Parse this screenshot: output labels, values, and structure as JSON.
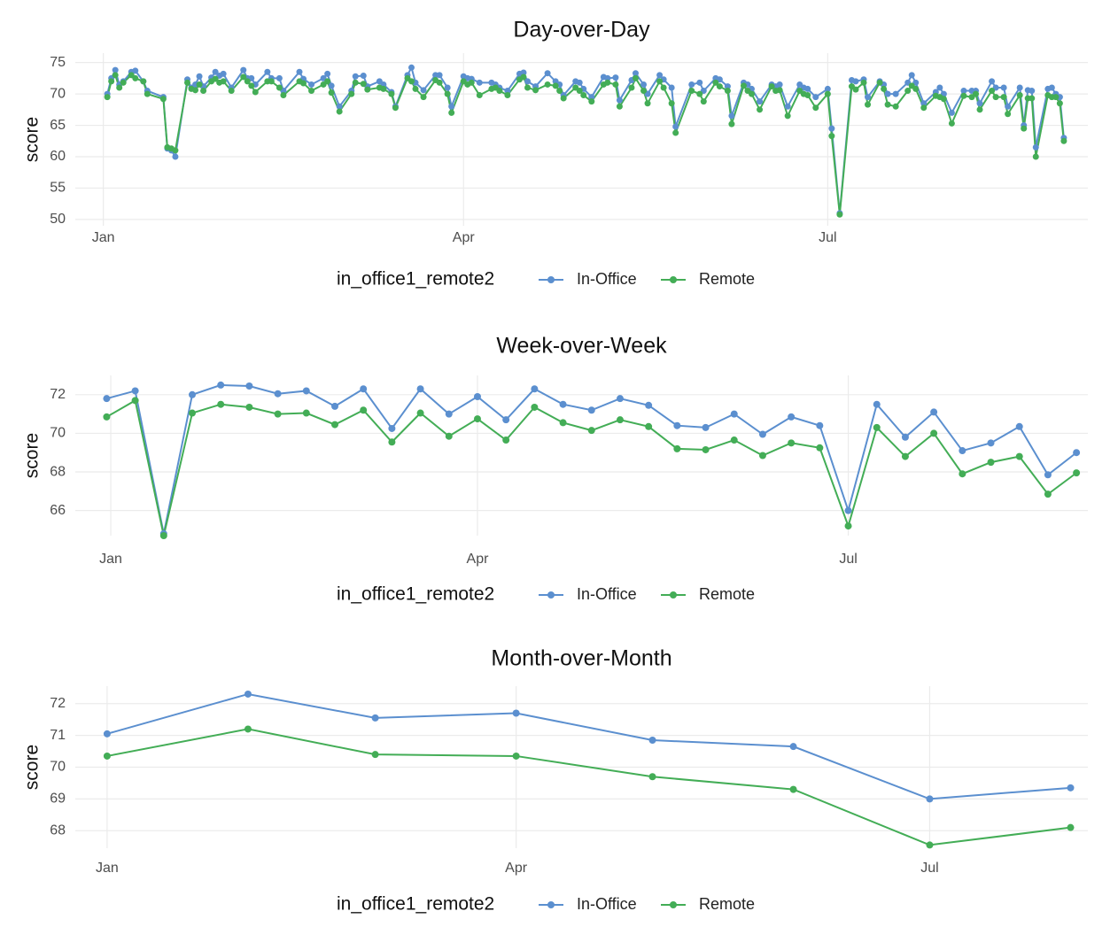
{
  "chart_data": [
    {
      "type": "line",
      "title": "Day-over-Day",
      "y_label": "score",
      "legend_title": "in_office1_remote2",
      "x": [
        1,
        2,
        3,
        4,
        5,
        7,
        8,
        10,
        11,
        15,
        16,
        17,
        18,
        21,
        22,
        23,
        24,
        25,
        27,
        28,
        29,
        30,
        32,
        35,
        36,
        37,
        38,
        41,
        42,
        44,
        45,
        49,
        50,
        52,
        55,
        56,
        57,
        59,
        62,
        63,
        65,
        66,
        69,
        70,
        72,
        73,
        76,
        77,
        78,
        80,
        83,
        84,
        86,
        87,
        90,
        91,
        92,
        94,
        97,
        98,
        99,
        101,
        104,
        105,
        106,
        108,
        111,
        113,
        114,
        115,
        118,
        119,
        120,
        122,
        125,
        126,
        128,
        129,
        132,
        133,
        135,
        136,
        139,
        140,
        142,
        143,
        147,
        149,
        150,
        153,
        154,
        156,
        157,
        160,
        161,
        162,
        164,
        167,
        168,
        169,
        171,
        174,
        175,
        176,
        178,
        181,
        182,
        184,
        187,
        188,
        190,
        191,
        194,
        195,
        196,
        198,
        201,
        202,
        203,
        205,
        208,
        209,
        210,
        212,
        215,
        217,
        218,
        219,
        222,
        223,
        225,
        226,
        229,
        230,
        231,
        232,
        233,
        236,
        237,
        238,
        239,
        240
      ],
      "series": [
        {
          "name": "In-Office",
          "color": "#5b8fcf",
          "values": [
            70,
            72.5,
            73.8,
            71.5,
            72,
            73.5,
            73.7,
            72,
            70.5,
            69.5,
            61.3,
            61,
            60,
            72.3,
            71,
            71.5,
            72.8,
            71.2,
            72.6,
            73.5,
            72.9,
            73.2,
            71,
            73.8,
            72.5,
            72.5,
            71.5,
            73.5,
            72.5,
            72.5,
            70.5,
            73.5,
            72.4,
            71.5,
            72.5,
            73.2,
            71.3,
            68,
            70.5,
            72.8,
            72.9,
            71.2,
            72,
            71.5,
            70.3,
            68,
            73,
            74.2,
            71.8,
            70.6,
            73,
            73,
            71,
            68,
            72.8,
            72.5,
            72.4,
            71.8,
            71.8,
            71.5,
            71,
            70.5,
            73.2,
            73.4,
            72,
            71.2,
            73.3,
            72,
            71.5,
            69.8,
            72,
            71.8,
            70.8,
            69.5,
            72.7,
            72.5,
            72.6,
            69,
            72.2,
            73.3,
            71.5,
            70,
            73,
            72.3,
            71,
            64.8,
            71.5,
            71.8,
            70.5,
            72.5,
            72.3,
            71.2,
            66.5,
            71.8,
            71.5,
            70.8,
            68.8,
            71.5,
            71.2,
            71.5,
            68,
            71.5,
            71,
            70.8,
            69.5,
            70.8,
            64.5,
            51,
            72.2,
            72,
            72.3,
            69.5,
            72,
            71.5,
            70,
            70,
            71.8,
            73,
            71.8,
            68.5,
            70.3,
            71,
            70,
            67,
            70.5,
            70.5,
            70.5,
            68.5,
            72,
            71,
            71,
            68,
            71,
            65,
            70.6,
            70.5,
            61.5,
            70.8,
            71,
            70,
            69.5,
            63
          ]
        },
        {
          "name": "Remote",
          "color": "#43ad56",
          "values": [
            69.5,
            72,
            73,
            71,
            71.8,
            73,
            72.5,
            72,
            70,
            69.2,
            61.5,
            61.3,
            61,
            71.8,
            70.8,
            70.6,
            71.5,
            70.5,
            72,
            72.4,
            71.8,
            72,
            70.5,
            72.7,
            72,
            71.3,
            70.3,
            72,
            72,
            71,
            69.8,
            72,
            71.7,
            70.5,
            71.5,
            72,
            70.2,
            67.2,
            70,
            71.8,
            71.6,
            70.7,
            71,
            70.8,
            70,
            67.8,
            72.5,
            72,
            70.8,
            69.5,
            72.2,
            71.8,
            70,
            67,
            72,
            71.5,
            71.8,
            69.8,
            70.8,
            71,
            70.5,
            69.8,
            72.3,
            72.7,
            71,
            70.6,
            71.5,
            71.3,
            70.5,
            69.3,
            71,
            70.5,
            69.8,
            68.8,
            71.5,
            71.8,
            71.5,
            68,
            71,
            72.5,
            70.5,
            68.5,
            72,
            71,
            68.5,
            63.8,
            70.5,
            70,
            68.8,
            71.8,
            71.2,
            70.5,
            65.2,
            71.3,
            70.5,
            70,
            67.5,
            71.2,
            70.5,
            70.6,
            66.5,
            70.5,
            70,
            69.8,
            67.8,
            70,
            63.3,
            50.8,
            71.2,
            70.7,
            71.8,
            68.3,
            71.8,
            70.8,
            68.3,
            68,
            70.5,
            71.3,
            70.8,
            67.8,
            69.7,
            69.5,
            69.2,
            65.3,
            69.7,
            69.5,
            70,
            67.5,
            70.5,
            69.5,
            69.5,
            66.8,
            69.8,
            64.5,
            69.3,
            69.3,
            60,
            69.8,
            69.5,
            69.5,
            68.5,
            62.5
          ]
        }
      ],
      "xlim": [
        -7,
        246
      ],
      "xticks": [
        {
          "value": 0,
          "label": "Jan"
        },
        {
          "value": 90,
          "label": "Apr"
        },
        {
          "value": 181,
          "label": "Jul"
        }
      ],
      "ylim": [
        49,
        76.5
      ],
      "yticks": [
        50,
        55,
        60,
        65,
        70,
        75
      ],
      "grid": true,
      "marker_radius": 3.5
    },
    {
      "type": "line",
      "title": "Week-over-Week",
      "y_label": "score",
      "legend_title": "in_office1_remote2",
      "x": [
        -1,
        6,
        13,
        20,
        27,
        34,
        41,
        48,
        55,
        62,
        69,
        76,
        83,
        90,
        97,
        104,
        111,
        118,
        125,
        132,
        139,
        146,
        153,
        160,
        167,
        174,
        181,
        188,
        195,
        202,
        209,
        216,
        223,
        230,
        237
      ],
      "series": [
        {
          "name": "In-Office",
          "color": "#5b8fcf",
          "values": [
            71.8,
            72.2,
            64.8,
            72,
            72.5,
            72.45,
            72.05,
            72.2,
            71.4,
            72.3,
            70.25,
            72.3,
            71,
            71.9,
            70.7,
            72.3,
            71.5,
            71.2,
            71.8,
            71.45,
            70.4,
            70.3,
            71,
            69.95,
            70.85,
            70.4,
            66,
            71.5,
            69.8,
            71.1,
            69.1,
            69.5,
            70.35,
            67.85,
            69
          ]
        },
        {
          "name": "Remote",
          "color": "#43ad56",
          "values": [
            70.85,
            71.7,
            64.7,
            71.05,
            71.5,
            71.35,
            71,
            71.05,
            70.45,
            71.2,
            69.55,
            71.05,
            69.85,
            70.75,
            69.65,
            71.35,
            70.55,
            70.15,
            70.7,
            70.35,
            69.2,
            69.15,
            69.65,
            68.85,
            69.5,
            69.25,
            65.2,
            70.3,
            68.8,
            70,
            67.9,
            68.5,
            68.8,
            66.85,
            67.95
          ]
        }
      ],
      "xlim": [
        -8.7,
        239.8
      ],
      "xticks": [
        {
          "value": 0,
          "label": "Jan"
        },
        {
          "value": 90,
          "label": "Apr"
        },
        {
          "value": 181,
          "label": "Jul"
        }
      ],
      "ylim": [
        64.7,
        73
      ],
      "yticks": [
        66,
        68,
        70,
        72
      ],
      "grid": true,
      "marker_radius": 4
    },
    {
      "type": "line",
      "title": "Month-over-Month",
      "y_label": "score",
      "legend_title": "in_office1_remote2",
      "x": [
        0,
        31,
        59,
        90,
        120,
        151,
        181,
        212
      ],
      "series": [
        {
          "name": "In-Office",
          "color": "#5b8fcf",
          "values": [
            71.05,
            72.3,
            71.55,
            71.7,
            70.85,
            70.65,
            69,
            69.35
          ]
        },
        {
          "name": "Remote",
          "color": "#43ad56",
          "values": [
            70.35,
            71.2,
            70.4,
            70.35,
            69.7,
            69.3,
            67.55,
            68.1
          ]
        }
      ],
      "xlim": [
        -7,
        215.8
      ],
      "xticks": [
        {
          "value": 0,
          "label": "Jan"
        },
        {
          "value": 90,
          "label": "Apr"
        },
        {
          "value": 181,
          "label": "Jul"
        }
      ],
      "ylim": [
        67.45,
        72.55
      ],
      "yticks": [
        68,
        69,
        70,
        71,
        72
      ],
      "grid": true,
      "marker_radius": 4
    }
  ]
}
